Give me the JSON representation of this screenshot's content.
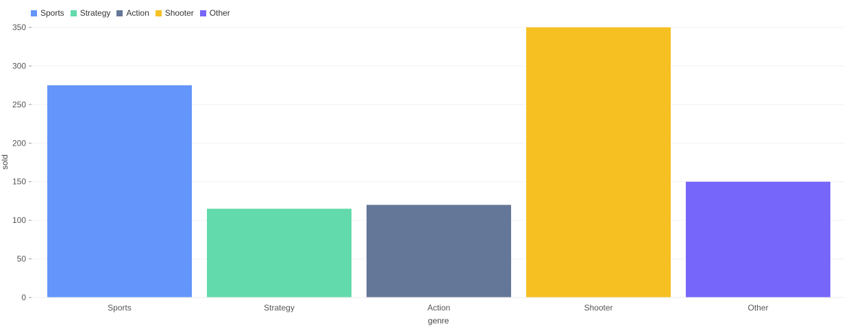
{
  "chart_data": {
    "type": "bar",
    "categories": [
      "Sports",
      "Strategy",
      "Action",
      "Shooter",
      "Other"
    ],
    "values": [
      275,
      115,
      120,
      350,
      150
    ],
    "colors": [
      "#6395fa",
      "#62daab",
      "#657798",
      "#f6c022",
      "#7666f9"
    ],
    "xlabel": "genre",
    "ylabel": "sold",
    "ylim": [
      0,
      350
    ],
    "yticks": [
      0,
      50,
      100,
      150,
      200,
      250,
      300,
      350
    ],
    "grid": true,
    "legend_position": "top-left",
    "legend": [
      "Sports",
      "Strategy",
      "Action",
      "Shooter",
      "Other"
    ]
  }
}
